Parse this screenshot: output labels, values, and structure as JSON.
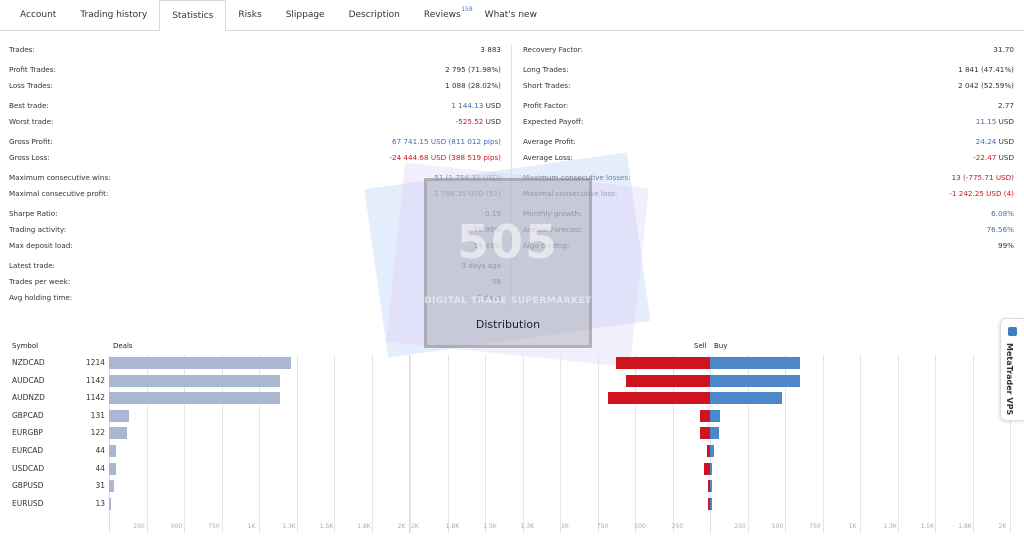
{
  "tabs": [
    {
      "label": "Account"
    },
    {
      "label": "Trading history"
    },
    {
      "label": "Statistics",
      "active": true
    },
    {
      "label": "Risks"
    },
    {
      "label": "Slippage"
    },
    {
      "label": "Description"
    },
    {
      "label": "Reviews",
      "badge": "158"
    },
    {
      "label": "What's new"
    }
  ],
  "stats_left": [
    {
      "label": "Trades:",
      "value": "3 883"
    },
    {
      "gap": true
    },
    {
      "label": "Profit Trades:",
      "value": "2 795 (71.98%)"
    },
    {
      "label": "Loss Trades:",
      "value": "1 088 (28.02%)"
    },
    {
      "gap": true
    },
    {
      "label": "Best trade:",
      "value": "1 144.13",
      "unit": " USD",
      "tone": "pos"
    },
    {
      "label": "Worst trade:",
      "value": "-525.52",
      "unit": " USD",
      "tone": "neg"
    },
    {
      "gap": true
    },
    {
      "label": "Gross Profit:",
      "value": "67 741.15 USD (811 012 pips)",
      "tone": "pos"
    },
    {
      "label": "Gross Loss:",
      "value": "-24 444.68 USD (388 519 pips)",
      "tone": "neg"
    },
    {
      "gap": true
    },
    {
      "label": "Maximum consecutive wins:",
      "value": "51 (1 756.35 USD)",
      "tone": "pos"
    },
    {
      "label": "Maximal consecutive profit:",
      "value": "1 756.35 USD (51)",
      "tone": "pos"
    },
    {
      "gap": true
    },
    {
      "label": "Sharpe Ratio:",
      "value": "0.19"
    },
    {
      "label": "Trading activity:",
      "value": "75.99%"
    },
    {
      "label": "Max deposit load:",
      "value": "59.43%"
    },
    {
      "gap": true
    },
    {
      "label": "Latest trade:",
      "value": "3 days ago"
    },
    {
      "label": "Trades per week:",
      "value": "58"
    },
    {
      "label": "Avg holding time:",
      "value": "2 days"
    }
  ],
  "stats_right": [
    {
      "label": "Recovery Factor:",
      "value": "31.70"
    },
    {
      "gap": true
    },
    {
      "label": "Long Trades:",
      "value": "1 841 (47.41%)"
    },
    {
      "label": "Short Trades:",
      "value": "2 042 (52.59%)"
    },
    {
      "gap": true
    },
    {
      "label": "Profit Factor:",
      "value": "2.77"
    },
    {
      "label": "Expected Payoff:",
      "value": "11.15",
      "unit": " USD",
      "tone": "pos"
    },
    {
      "gap": true
    },
    {
      "label": "Average Profit:",
      "value": "24.24",
      "unit": " USD",
      "tone": "pos"
    },
    {
      "label": "Average Loss:",
      "value": "-22.47",
      "unit": " USD",
      "tone": "neg"
    },
    {
      "gap": true
    },
    {
      "label": "Maximum consecutive losses:",
      "value": "13 (-775.71 USD)",
      "tone": "neg"
    },
    {
      "label": "Maximal consecutive loss:",
      "value": "-1 242.25 USD (4)",
      "tone": "neg"
    },
    {
      "gap": true
    },
    {
      "label": "Monthly growth:",
      "value": "6.08%",
      "tone": "pos"
    },
    {
      "label": "Annual Forecast:",
      "value": "76.56%",
      "tone": "pos"
    },
    {
      "label": "Algo trading:",
      "value": "99%"
    }
  ],
  "watermark": {
    "big": "505",
    "small": "DIGITAL TRADE SUPERMARKET"
  },
  "distribution": {
    "title": "Distribution",
    "headers": {
      "symbol": "Symbol",
      "deals": "Deals",
      "sell": "Sell",
      "buy": "Buy"
    }
  },
  "chart_data": {
    "type": "bar",
    "categories": [
      "NZDCAD",
      "AUDCAD",
      "AUDNZD",
      "GBPCAD",
      "EURGBP",
      "EURCAD",
      "USDCAD",
      "GBPUSD",
      "EURUSD"
    ],
    "series": [
      {
        "name": "Deals",
        "values": [
          1214,
          1142,
          1142,
          131,
          122,
          44,
          44,
          31,
          13
        ]
      },
      {
        "name": "Sell",
        "values": [
          630,
          560,
          680,
          65,
          65,
          20,
          40,
          15,
          5
        ]
      },
      {
        "name": "Buy",
        "values": [
          600,
          600,
          480,
          65,
          60,
          25,
          10,
          15,
          10
        ]
      }
    ],
    "deals_ticks": [
      "250",
      "500",
      "750",
      "1K",
      "1.3K",
      "1.5K",
      "1.8K",
      "2K"
    ],
    "sell_ticks": [
      "2K",
      "1.8K",
      "1.5K",
      "1.3K",
      "1K",
      "750",
      "500",
      "250"
    ],
    "buy_ticks": [
      "250",
      "500",
      "750",
      "1K",
      "1.3K",
      "1.5K",
      "1.8K",
      "2K"
    ],
    "deals_max": 2000,
    "side_max": 2000,
    "colors": {
      "deals": "#a9b8d0",
      "sell": "#cf1420",
      "buy": "#4d87c9"
    }
  },
  "vps": {
    "label": "MetaTrader VPS"
  }
}
